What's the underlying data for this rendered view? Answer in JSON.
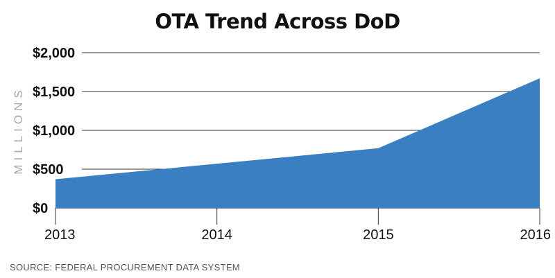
{
  "chart_data": {
    "type": "area",
    "title": "OTA Trend Across DoD",
    "ylabel": "MILLIONS",
    "xlabel": "",
    "categories": [
      "2013",
      "2014",
      "2015",
      "2016"
    ],
    "x": [
      2013,
      2014,
      2015,
      2016
    ],
    "values": [
      370,
      570,
      770,
      1670
    ],
    "ylim": [
      0,
      2000
    ],
    "yticks": [
      0,
      500,
      1000,
      1500,
      2000
    ],
    "ytick_labels": [
      "$0",
      "$500",
      "$1,000",
      "$1,500",
      "$2,000"
    ],
    "grid": true,
    "legend": "none",
    "source": "SOURCE: FEDERAL PROCUREMENT DATA SYSTEM",
    "colors": {
      "area": "#3a7fc1",
      "grid": "#333333"
    }
  }
}
